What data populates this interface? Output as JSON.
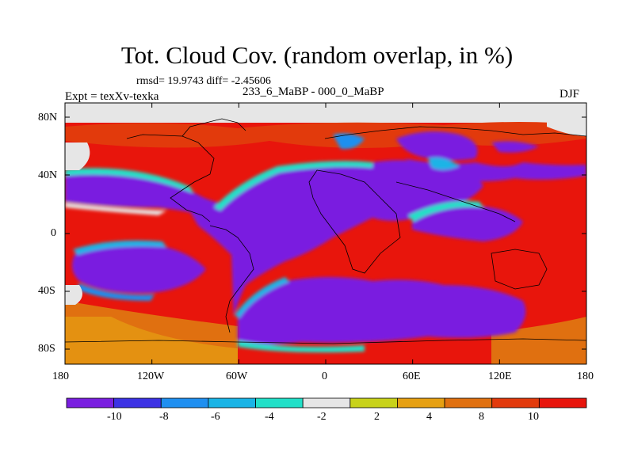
{
  "title": "Tot. Cloud Cov. (random overlap, in %)",
  "stats": "rmsd= 19.9743 diff= -2.45606",
  "experiment": "Expt = texXv-texka",
  "comparison": "233_6_MaBP - 000_0_MaBP",
  "season": "DJF",
  "map": {
    "lon_ticks": [
      "180",
      "120W",
      "60W",
      "0",
      "60E",
      "120E",
      "180"
    ],
    "lat_ticks": [
      "80N",
      "40N",
      "0",
      "40S",
      "80S"
    ],
    "ocean_color": "#7b1fe0",
    "land_color": "#e8150c",
    "neutral_color": "#e6e6e6"
  },
  "colorbar": {
    "labels": [
      "-10",
      "-8",
      "-6",
      "-4",
      "-2",
      "2",
      "4",
      "8",
      "10"
    ],
    "colors": [
      "#7a1fe0",
      "#3c32e4",
      "#1f8ff0",
      "#1ab4e6",
      "#22e0c8",
      "#e6e6e6",
      "#c8d21a",
      "#e6a012",
      "#e07010",
      "#e23a0c",
      "#e8150c"
    ]
  }
}
